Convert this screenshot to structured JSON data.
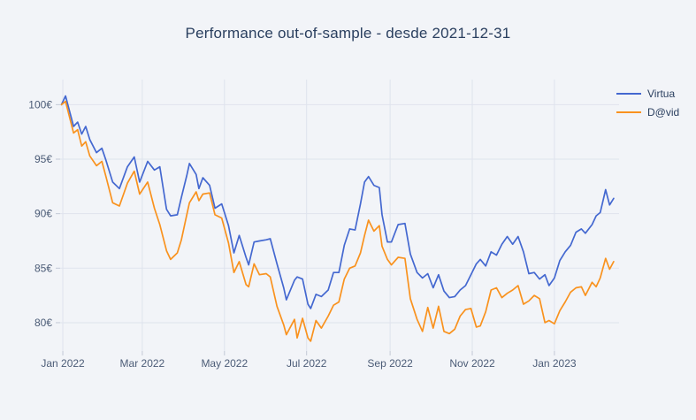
{
  "page": {
    "background": "#f2f4f8"
  },
  "chart_data": {
    "type": "line",
    "title": "Performance out-of-sample - desde 2021-12-31",
    "title_color": "#2a3f5f",
    "currency_suffix": "€",
    "grid": true,
    "grid_color": "#dfe3ed",
    "tick_mark_color": "#c3c9d6",
    "tick_label_color": "#4c5c77",
    "legend_position": "top-right",
    "xlim": [
      "2021-12-30",
      "2023-02-18"
    ],
    "ylim": [
      77.4,
      102.3
    ],
    "x_ticks": [
      {
        "date": "2022-01-01",
        "label": "Jan 2022"
      },
      {
        "date": "2022-03-01",
        "label": "Mar 2022"
      },
      {
        "date": "2022-05-01",
        "label": "May 2022"
      },
      {
        "date": "2022-07-01",
        "label": "Jul 2022"
      },
      {
        "date": "2022-09-01",
        "label": "Sep 2022"
      },
      {
        "date": "2022-11-01",
        "label": "Nov 2022"
      },
      {
        "date": "2023-01-01",
        "label": "Jan 2023"
      }
    ],
    "y_ticks": [
      {
        "value": 80,
        "label": "80€"
      },
      {
        "value": 85,
        "label": "85€"
      },
      {
        "value": 90,
        "label": "90€"
      },
      {
        "value": 95,
        "label": "95€"
      },
      {
        "value": 100,
        "label": "100€"
      }
    ],
    "dates": [
      "2021-12-31",
      "2022-01-03",
      "2022-01-09",
      "2022-01-12",
      "2022-01-15",
      "2022-01-18",
      "2022-01-21",
      "2022-01-26",
      "2022-01-30",
      "2022-02-02",
      "2022-02-07",
      "2022-02-12",
      "2022-02-18",
      "2022-02-23",
      "2022-02-27",
      "2022-03-05",
      "2022-03-10",
      "2022-03-14",
      "2022-03-19",
      "2022-03-22",
      "2022-03-27",
      "2022-03-30",
      "2022-04-03",
      "2022-04-05",
      "2022-04-10",
      "2022-04-12",
      "2022-04-15",
      "2022-04-20",
      "2022-04-24",
      "2022-04-29",
      "2022-05-04",
      "2022-05-08",
      "2022-05-12",
      "2022-05-17",
      "2022-05-19",
      "2022-05-23",
      "2022-05-27",
      "2022-06-01",
      "2022-06-04",
      "2022-06-09",
      "2022-06-14",
      "2022-06-16",
      "2022-06-22",
      "2022-06-24",
      "2022-06-28",
      "2022-07-02",
      "2022-07-04",
      "2022-07-08",
      "2022-07-12",
      "2022-07-17",
      "2022-07-21",
      "2022-07-25",
      "2022-07-29",
      "2022-08-02",
      "2022-08-06",
      "2022-08-10",
      "2022-08-13",
      "2022-08-16",
      "2022-08-20",
      "2022-08-24",
      "2022-08-26",
      "2022-08-30",
      "2022-09-02",
      "2022-09-07",
      "2022-09-12",
      "2022-09-16",
      "2022-09-21",
      "2022-09-25",
      "2022-09-29",
      "2022-10-03",
      "2022-10-07",
      "2022-10-11",
      "2022-10-15",
      "2022-10-19",
      "2022-10-23",
      "2022-10-27",
      "2022-10-31",
      "2022-11-04",
      "2022-11-07",
      "2022-11-11",
      "2022-11-15",
      "2022-11-19",
      "2022-11-23",
      "2022-11-27",
      "2022-12-01",
      "2022-12-05",
      "2022-12-09",
      "2022-12-13",
      "2022-12-17",
      "2022-12-21",
      "2022-12-25",
      "2022-12-28",
      "2023-01-01",
      "2023-01-05",
      "2023-01-09",
      "2023-01-13",
      "2023-01-17",
      "2023-01-21",
      "2023-01-24",
      "2023-01-29",
      "2023-02-01",
      "2023-02-04",
      "2023-02-08",
      "2023-02-11",
      "2023-02-14"
    ],
    "series": [
      {
        "name": "Virtua",
        "color": "#4468d0",
        "values": [
          100.0,
          100.8,
          98.0,
          98.4,
          97.3,
          98.0,
          96.8,
          95.6,
          96.0,
          94.9,
          92.9,
          92.3,
          94.3,
          95.2,
          92.9,
          94.8,
          94.0,
          94.3,
          90.4,
          89.8,
          89.9,
          91.5,
          93.5,
          94.6,
          93.6,
          92.3,
          93.3,
          92.6,
          90.5,
          90.9,
          88.9,
          86.4,
          88.0,
          86.0,
          85.3,
          87.4,
          87.5,
          87.6,
          87.7,
          85.4,
          83.2,
          82.1,
          83.9,
          84.2,
          84.0,
          81.7,
          81.3,
          82.6,
          82.4,
          83.0,
          84.6,
          84.6,
          87.1,
          88.6,
          88.5,
          90.9,
          92.9,
          93.4,
          92.6,
          92.4,
          89.9,
          87.4,
          87.4,
          89.0,
          89.1,
          86.3,
          84.6,
          84.1,
          84.5,
          83.2,
          84.4,
          82.9,
          82.3,
          82.4,
          83.0,
          83.4,
          84.4,
          85.4,
          85.8,
          85.2,
          86.5,
          86.2,
          87.2,
          87.9,
          87.2,
          87.9,
          86.5,
          84.5,
          84.6,
          84.0,
          84.4,
          83.4,
          84.1,
          85.7,
          86.5,
          87.1,
          88.3,
          88.6,
          88.2,
          89.0,
          89.8,
          90.1,
          92.2,
          90.8,
          91.4
        ]
      },
      {
        "name": "D@vid",
        "color": "#f9921e",
        "values": [
          100.0,
          100.3,
          97.4,
          97.7,
          96.2,
          96.6,
          95.3,
          94.4,
          94.8,
          93.4,
          91.0,
          90.7,
          92.8,
          93.9,
          91.8,
          92.9,
          90.5,
          89.0,
          86.6,
          85.8,
          86.4,
          87.6,
          89.9,
          91.0,
          92.0,
          91.2,
          91.8,
          91.9,
          89.9,
          89.6,
          87.3,
          84.6,
          85.6,
          83.5,
          83.3,
          85.4,
          84.4,
          84.5,
          84.2,
          81.5,
          79.8,
          78.9,
          80.3,
          78.6,
          80.4,
          78.6,
          78.3,
          80.2,
          79.5,
          80.6,
          81.6,
          81.9,
          84.0,
          85.0,
          85.2,
          86.4,
          88.0,
          89.4,
          88.4,
          88.9,
          87.0,
          85.8,
          85.3,
          86.0,
          85.9,
          82.2,
          80.3,
          79.2,
          81.4,
          79.5,
          81.5,
          79.2,
          79.0,
          79.4,
          80.6,
          81.2,
          81.3,
          79.6,
          79.7,
          81.0,
          83.0,
          83.2,
          82.3,
          82.7,
          83.0,
          83.4,
          81.7,
          82.0,
          82.5,
          82.2,
          80.0,
          80.2,
          79.9,
          81.1,
          81.9,
          82.8,
          83.2,
          83.3,
          82.5,
          83.7,
          83.3,
          84.1,
          85.9,
          84.9,
          85.6
        ]
      }
    ]
  }
}
